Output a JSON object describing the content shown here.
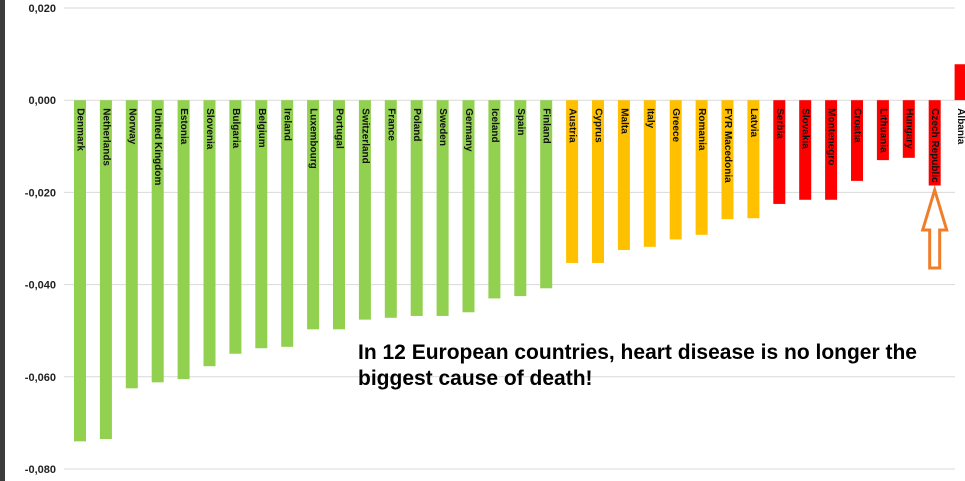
{
  "annotation": "In 12 European countries, heart disease is no longer the biggest cause of death!",
  "colors": {
    "green": "#92d050",
    "orange": "#ffc000",
    "red": "#ff0000",
    "arrow": "#f07d2a",
    "grid": "#d9d9d9",
    "axis_text": "#222222"
  },
  "arrow_icon": "up-arrow-outline",
  "chart_data": {
    "type": "bar",
    "title": "",
    "xlabel": "",
    "ylabel": "",
    "ylim": [
      -0.08,
      0.02
    ],
    "yticks": [
      0.02,
      0.0,
      -0.02,
      -0.04,
      -0.06,
      -0.08
    ],
    "ytick_labels": [
      "0,020",
      "0,000",
      "-0,020",
      "-0,040",
      "-0,060",
      "-0,080"
    ],
    "grid": true,
    "categories": [
      "Denmark",
      "Netherlands",
      "Norway",
      "United Kingdom",
      "Estonia",
      "Slovenia",
      "Bulgaria",
      "Belgium",
      "Ireland",
      "Luxembourg",
      "Portugal",
      "Switzerland",
      "France",
      "Poland",
      "Sweden",
      "Germany",
      "Iceland",
      "Spain",
      "Finland",
      "Austria",
      "Cyprus",
      "Malta",
      "Italy",
      "Greece",
      "Romania",
      "FYR Macedonia",
      "Latvia",
      "Serbia",
      "Slovakia",
      "Montenegro",
      "Croatia",
      "Lithuania",
      "Hungary",
      "Czech Republic",
      "Albania"
    ],
    "values": [
      -0.074,
      -0.0735,
      -0.0625,
      -0.0612,
      -0.0605,
      -0.0577,
      -0.055,
      -0.0538,
      -0.0535,
      -0.0497,
      -0.0497,
      -0.0476,
      -0.0472,
      -0.0468,
      -0.0468,
      -0.046,
      -0.043,
      -0.0425,
      -0.0408,
      -0.0353,
      -0.0353,
      -0.0325,
      -0.0318,
      -0.0302,
      -0.0292,
      -0.0258,
      -0.0256,
      -0.0225,
      -0.0216,
      -0.0216,
      -0.0175,
      -0.013,
      -0.0125,
      -0.0185,
      0.0078
    ],
    "color_groups": [
      "green",
      "green",
      "green",
      "green",
      "green",
      "green",
      "green",
      "green",
      "green",
      "green",
      "green",
      "green",
      "green",
      "green",
      "green",
      "green",
      "green",
      "green",
      "green",
      "orange",
      "orange",
      "orange",
      "orange",
      "orange",
      "orange",
      "orange",
      "orange",
      "red",
      "red",
      "red",
      "red",
      "red",
      "red",
      "red",
      "red"
    ]
  }
}
